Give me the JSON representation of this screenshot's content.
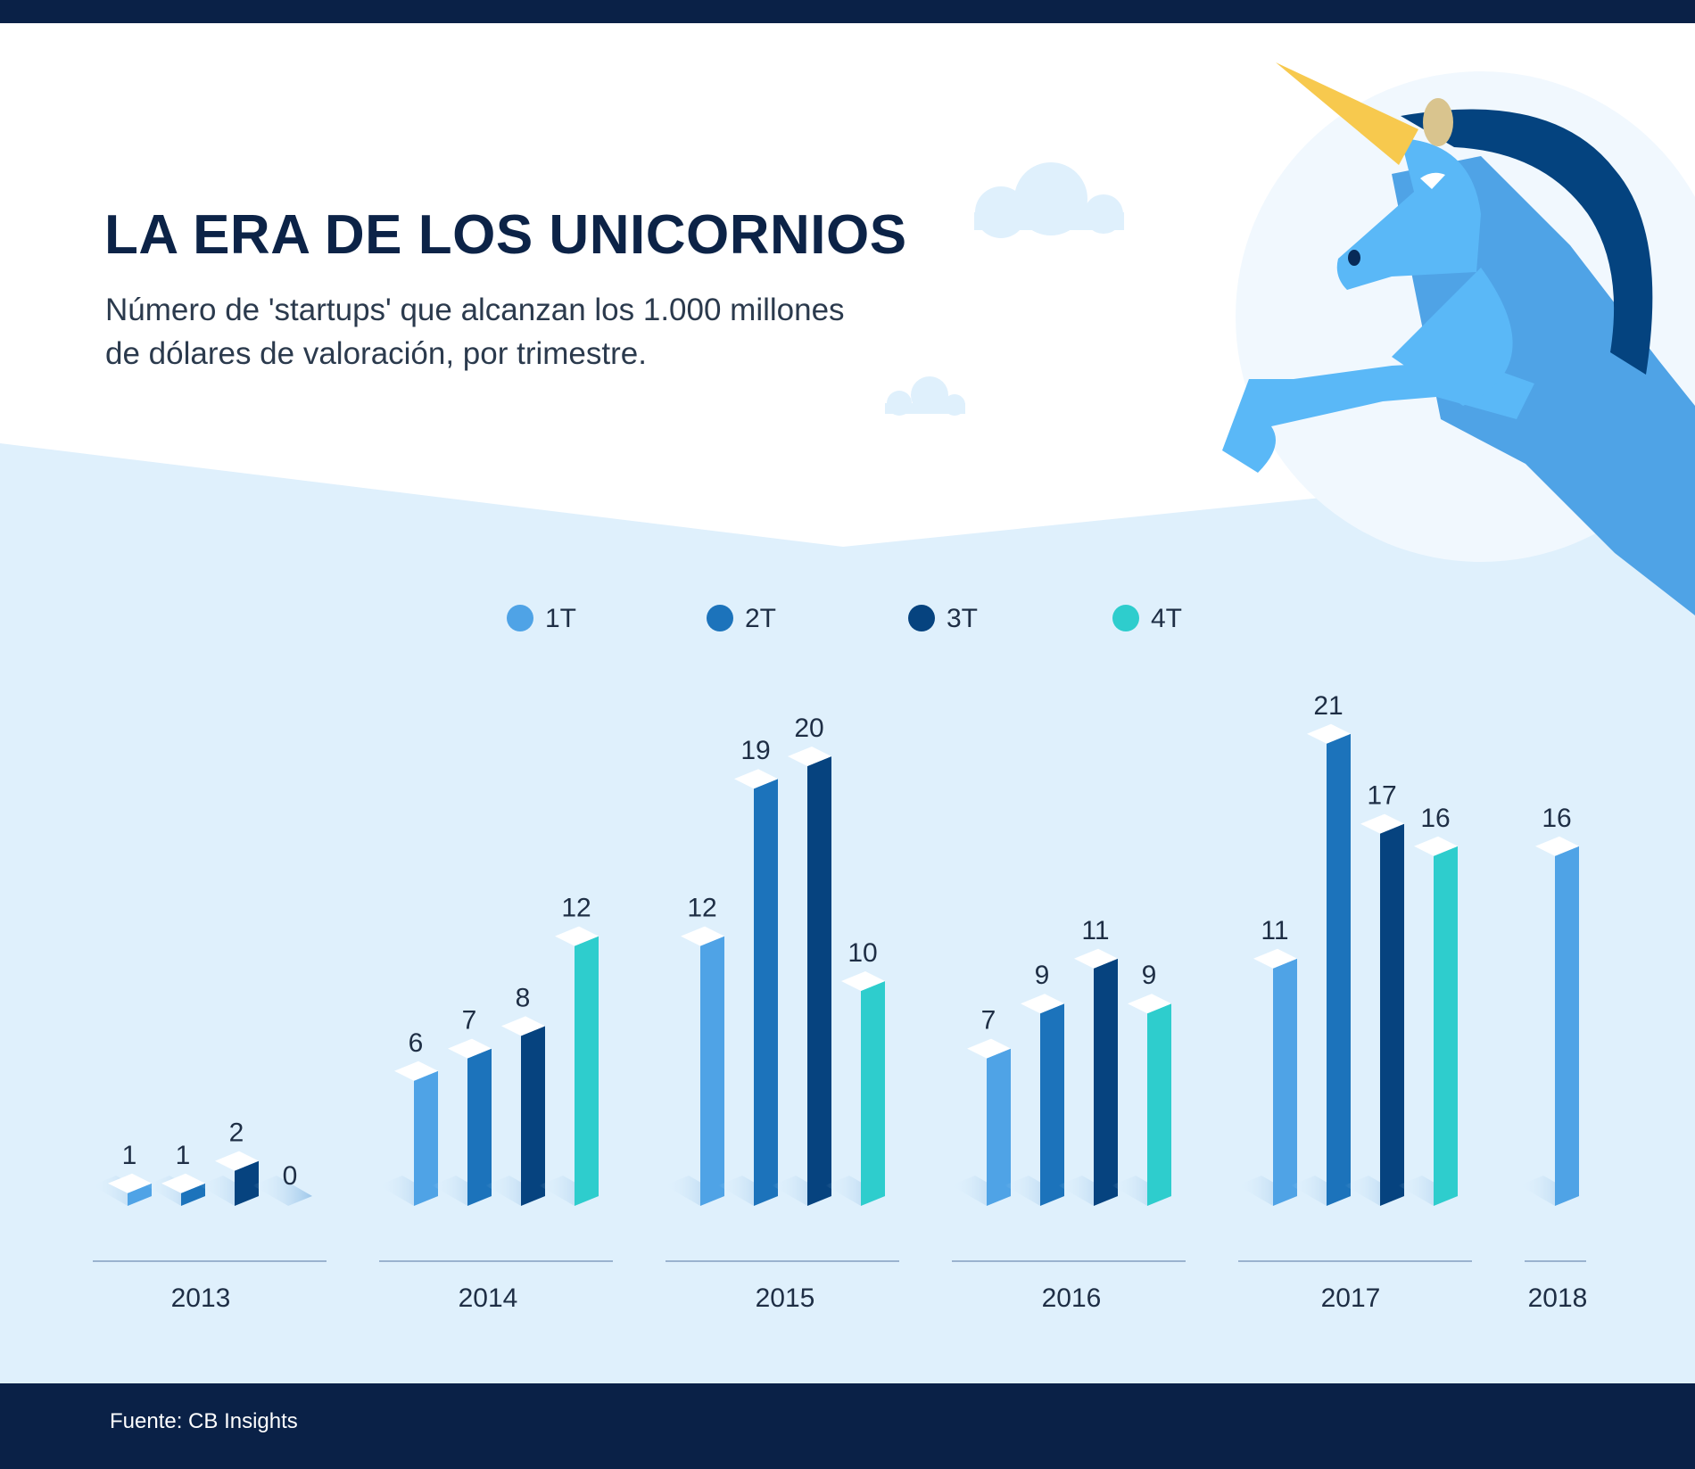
{
  "title": "LA ERA DE LOS UNICORNIOS",
  "subtitle_line1": "Número de 'startups' que alcanzan los 1.000 millones",
  "subtitle_line2": "de dólares de valoración, por trimestre.",
  "source": "Fuente: CB Insights",
  "chart_data": {
    "type": "bar",
    "title": "",
    "xlabel": "",
    "ylabel": "",
    "ylim": [
      0,
      21
    ],
    "grid": false,
    "legend_position": "top-center",
    "groups": [
      {
        "year": "2013",
        "values": [
          1,
          1,
          2,
          0
        ]
      },
      {
        "year": "2014",
        "values": [
          6,
          7,
          8,
          12
        ]
      },
      {
        "year": "2015",
        "values": [
          12,
          19,
          20,
          10
        ]
      },
      {
        "year": "2016",
        "values": [
          7,
          9,
          11,
          9
        ]
      },
      {
        "year": "2017",
        "values": [
          11,
          21,
          17,
          16
        ]
      },
      {
        "year": "2018",
        "values": [
          16
        ]
      }
    ],
    "series": [
      {
        "name": "1T",
        "color": "#4fa3e6"
      },
      {
        "name": "2T",
        "color": "#1c73bb"
      },
      {
        "name": "3T",
        "color": "#06437f"
      },
      {
        "name": "4T",
        "color": "#2ecdcd"
      }
    ]
  }
}
